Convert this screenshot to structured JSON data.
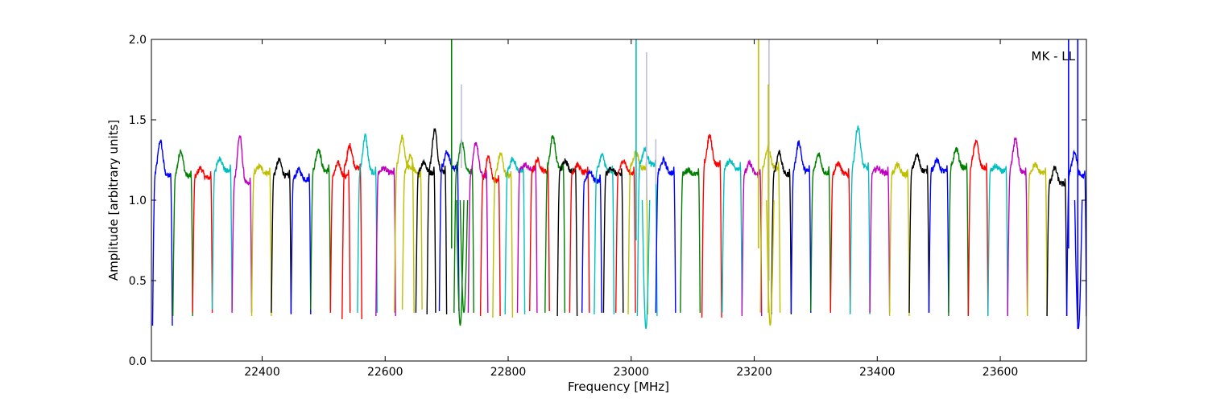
{
  "chart_data": {
    "type": "line",
    "xlabel": "Frequency [MHz]",
    "ylabel": "Amplitude [arbitrary units]",
    "annotation": "MK - LL",
    "xlim": [
      22220,
      23740
    ],
    "ylim": [
      0.0,
      2.0
    ],
    "x_ticks": [
      22400,
      22600,
      22800,
      23000,
      23200,
      23400,
      23600
    ],
    "y_ticks": [
      0.0,
      0.5,
      1.0,
      1.5,
      2.0
    ],
    "x_tick_labels": [
      "22400",
      "22600",
      "22800",
      "23000",
      "23200",
      "23400",
      "23600"
    ],
    "y_tick_labels": [
      "0.0",
      "0.5",
      "1.0",
      "1.5",
      "2.0"
    ],
    "grid": false,
    "palette": [
      "#0000ff",
      "#008000",
      "#ff0000",
      "#00bfbf",
      "#bf00bf",
      "#bfbf00",
      "#000000"
    ],
    "band_width_mhz": 32,
    "band_edge_value": 0.28,
    "band_edge_values": [
      0.22,
      0.28,
      0.3,
      0.32,
      0.3,
      0.28,
      0.3,
      0.29,
      0.32,
      0.3,
      0.26,
      0.3,
      0.28,
      0.3,
      0.32,
      0.3,
      0.29,
      0.31,
      0.3,
      0.3,
      0.28,
      0.27,
      0.29,
      0.3,
      0.31,
      0.3,
      0.28,
      0.3,
      0.3,
      0.29,
      0.3,
      0.3,
      0.29,
      0.28,
      0.3,
      0.3,
      0.27,
      0.3,
      0.28,
      0.3,
      0.29,
      0.3,
      0.31,
      0.3,
      0.29,
      0.3,
      0.28,
      0.3,
      0.3
    ],
    "series": [
      {
        "color": "#0000ff",
        "x_start": 22222,
        "level": 1.15,
        "peak": 1.37
      },
      {
        "color": "#008000",
        "x_start": 22255,
        "level": 1.15,
        "peak": 1.31
      },
      {
        "color": "#ff0000",
        "x_start": 22287,
        "level": 1.14,
        "peak": 1.2
      },
      {
        "color": "#00bfbf",
        "x_start": 22319,
        "level": 1.18,
        "peak": 1.26
      },
      {
        "color": "#bf00bf",
        "x_start": 22351,
        "level": 1.1,
        "peak": 1.4
      },
      {
        "color": "#bfbf00",
        "x_start": 22383,
        "level": 1.17,
        "peak": 1.21
      },
      {
        "color": "#000000",
        "x_start": 22415,
        "level": 1.15,
        "peak": 1.25
      },
      {
        "color": "#0000ff",
        "x_start": 22447,
        "level": 1.13,
        "peak": 1.19
      },
      {
        "color": "#008000",
        "x_start": 22479,
        "level": 1.18,
        "peak": 1.32
      },
      {
        "color": "#ff0000",
        "x_start": 22511,
        "level": 1.15,
        "peak": 1.23
      },
      {
        "color": "#ff0000",
        "x_start": 22530,
        "level": 1.2,
        "peak": 1.34
      },
      {
        "color": "#00bfbf",
        "x_start": 22555,
        "level": 1.17,
        "peak": 1.4
      },
      {
        "color": "#bf00bf",
        "x_start": 22585,
        "level": 1.17,
        "peak": 1.2
      },
      {
        "color": "#bfbf00",
        "x_start": 22615,
        "level": 1.2,
        "peak": 1.39
      },
      {
        "color": "#bfbf00",
        "x_start": 22628,
        "level": 1.16,
        "peak": 1.28
      },
      {
        "color": "#000000",
        "x_start": 22650,
        "level": 1.17,
        "peak": 1.24
      },
      {
        "color": "#000000",
        "x_start": 22668,
        "level": 1.18,
        "peak": 1.44
      },
      {
        "color": "#0000ff",
        "x_start": 22688,
        "level": 1.2,
        "peak": 1.3
      },
      {
        "color": "#008000",
        "x_start": 22712,
        "level": 1.18,
        "peak": 1.37
      },
      {
        "color": "#bf00bf",
        "x_start": 22735,
        "level": 1.15,
        "peak": 1.36
      },
      {
        "color": "#ff0000",
        "x_start": 22755,
        "level": 1.12,
        "peak": 1.27
      },
      {
        "color": "#bfbf00",
        "x_start": 22775,
        "level": 1.15,
        "peak": 1.29
      },
      {
        "color": "#00bfbf",
        "x_start": 22795,
        "level": 1.18,
        "peak": 1.26
      },
      {
        "color": "#bf00bf",
        "x_start": 22815,
        "level": 1.19,
        "peak": 1.22
      },
      {
        "color": "#ff0000",
        "x_start": 22835,
        "level": 1.18,
        "peak": 1.25
      },
      {
        "color": "#008000",
        "x_start": 22860,
        "level": 1.2,
        "peak": 1.4
      },
      {
        "color": "#000000",
        "x_start": 22880,
        "level": 1.18,
        "peak": 1.25
      },
      {
        "color": "#ff0000",
        "x_start": 22900,
        "level": 1.17,
        "peak": 1.22
      },
      {
        "color": "#0000ff",
        "x_start": 22920,
        "level": 1.12,
        "peak": 1.18
      },
      {
        "color": "#00bfbf",
        "x_start": 22940,
        "level": 1.18,
        "peak": 1.28
      },
      {
        "color": "#000000",
        "x_start": 22955,
        "level": 1.16,
        "peak": 1.2
      },
      {
        "color": "#ff0000",
        "x_start": 22975,
        "level": 1.17,
        "peak": 1.25
      },
      {
        "color": "#bfbf00",
        "x_start": 22995,
        "level": 1.2,
        "peak": 1.3
      },
      {
        "color": "#00bfbf",
        "x_start": 23010,
        "level": 1.22,
        "peak": 1.32
      },
      {
        "color": "#0000ff",
        "x_start": 23040,
        "level": 1.17,
        "peak": 1.25
      },
      {
        "color": "#008000",
        "x_start": 23080,
        "level": 1.16,
        "peak": 1.19
      },
      {
        "color": "#ff0000",
        "x_start": 23115,
        "level": 1.22,
        "peak": 1.4
      },
      {
        "color": "#00bfbf",
        "x_start": 23148,
        "level": 1.2,
        "peak": 1.25
      },
      {
        "color": "#bf00bf",
        "x_start": 23180,
        "level": 1.16,
        "peak": 1.23
      },
      {
        "color": "#bfbf00",
        "x_start": 23210,
        "level": 1.2,
        "peak": 1.32
      },
      {
        "color": "#000000",
        "x_start": 23228,
        "level": 1.16,
        "peak": 1.3
      },
      {
        "color": "#0000ff",
        "x_start": 23260,
        "level": 1.18,
        "peak": 1.36
      },
      {
        "color": "#008000",
        "x_start": 23292,
        "level": 1.17,
        "peak": 1.29
      },
      {
        "color": "#ff0000",
        "x_start": 23324,
        "level": 1.16,
        "peak": 1.23
      },
      {
        "color": "#00bfbf",
        "x_start": 23356,
        "level": 1.2,
        "peak": 1.46
      },
      {
        "color": "#bf00bf",
        "x_start": 23388,
        "level": 1.17,
        "peak": 1.2
      },
      {
        "color": "#bfbf00",
        "x_start": 23420,
        "level": 1.16,
        "peak": 1.22
      },
      {
        "color": "#000000",
        "x_start": 23452,
        "level": 1.18,
        "peak": 1.28
      },
      {
        "color": "#0000ff",
        "x_start": 23484,
        "level": 1.18,
        "peak": 1.25
      },
      {
        "color": "#008000",
        "x_start": 23516,
        "level": 1.2,
        "peak": 1.32
      },
      {
        "color": "#ff0000",
        "x_start": 23548,
        "level": 1.2,
        "peak": 1.37
      },
      {
        "color": "#00bfbf",
        "x_start": 23580,
        "level": 1.18,
        "peak": 1.21
      },
      {
        "color": "#bf00bf",
        "x_start": 23612,
        "level": 1.17,
        "peak": 1.38
      },
      {
        "color": "#bfbf00",
        "x_start": 23644,
        "level": 1.17,
        "peak": 1.22
      },
      {
        "color": "#000000",
        "x_start": 23676,
        "level": 1.1,
        "peak": 1.2
      },
      {
        "color": "#0000ff",
        "x_start": 23708,
        "level": 1.15,
        "peak": 1.3
      }
    ],
    "spikes": [
      {
        "x": 22708,
        "y0": 0.7,
        "y1": 2.0,
        "color": "#008000"
      },
      {
        "x": 22724,
        "y0": 1.2,
        "y1": 1.72,
        "color": "#c0c0d8"
      },
      {
        "x": 23008,
        "y0": 0.75,
        "y1": 2.0,
        "color": "#00bfbf"
      },
      {
        "x": 23025,
        "y0": 1.0,
        "y1": 1.92,
        "color": "#c0c0d8"
      },
      {
        "x": 23040,
        "y0": 1.1,
        "y1": 1.38,
        "color": "#c0c0d8"
      },
      {
        "x": 23207,
        "y0": 0.7,
        "y1": 2.0,
        "color": "#bfbf00"
      },
      {
        "x": 23224,
        "y0": 0.5,
        "y1": 2.0,
        "color": "#c0c0d8"
      },
      {
        "x": 23223,
        "y0": 0.3,
        "y1": 1.72,
        "color": "#bfbf00"
      },
      {
        "x": 23711,
        "y0": 0.7,
        "y1": 2.0,
        "color": "#0000ff"
      },
      {
        "x": 23726,
        "y0": 0.2,
        "y1": 2.0,
        "color": "#0000ff"
      }
    ],
    "dips": [
      {
        "x": 22722,
        "min": 0.22,
        "color": "#008000"
      },
      {
        "x": 22728,
        "min": 0.3,
        "color": "#008000"
      },
      {
        "x": 23024,
        "min": 0.2,
        "color": "#00bfbf"
      },
      {
        "x": 23226,
        "min": 0.22,
        "color": "#bfbf00"
      },
      {
        "x": 23727,
        "min": 0.2,
        "color": "#0000ff"
      }
    ]
  }
}
